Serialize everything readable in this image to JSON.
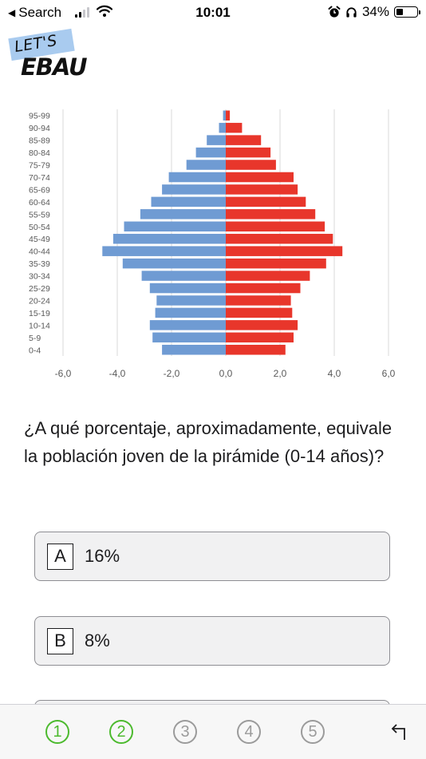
{
  "status_bar": {
    "back_label": "Search",
    "time": "10:01",
    "battery_text": "34%",
    "battery_level": 0.34,
    "signal_bars_active": 2,
    "signal_bars_total": 4
  },
  "logo": {
    "top_text": "LET'S",
    "main_text": "EBAU"
  },
  "chart_data": {
    "type": "bar",
    "orientation": "horizontal-population-pyramid",
    "categories": [
      "95-99",
      "90-94",
      "85-89",
      "80-84",
      "75-79",
      "70-74",
      "65-69",
      "60-64",
      "55-59",
      "50-54",
      "45-49",
      "40-44",
      "35-39",
      "30-34",
      "25-29",
      "20-24",
      "15-19",
      "10-14",
      "5-9",
      "0-4"
    ],
    "series": [
      {
        "color": "#6f9bd3",
        "values": [
          -0.1,
          -0.25,
          -0.7,
          -1.1,
          -1.45,
          -2.1,
          -2.35,
          -2.75,
          -3.15,
          -3.75,
          -4.15,
          -4.55,
          -3.8,
          -3.1,
          -2.8,
          -2.55,
          -2.6,
          -2.8,
          -2.7,
          -2.35
        ]
      },
      {
        "color": "#e8362b",
        "values": [
          0.15,
          0.6,
          1.3,
          1.65,
          1.85,
          2.5,
          2.65,
          2.95,
          3.3,
          3.65,
          3.95,
          4.3,
          3.7,
          3.1,
          2.75,
          2.4,
          2.45,
          2.65,
          2.5,
          2.2
        ]
      }
    ],
    "xlim": [
      -6,
      6
    ],
    "xticks": [
      "-6,0",
      "-4,0",
      "-2,0",
      "0,0",
      "2,0",
      "4,0",
      "6,0"
    ],
    "xtick_values": [
      -6,
      -4,
      -2,
      0,
      2,
      4,
      6
    ],
    "grid": true,
    "title": "",
    "xlabel": "",
    "ylabel": ""
  },
  "question": {
    "text": "¿A qué porcentaje, aproximadamente, equivale la población joven de la pirámide (0-14 años)?"
  },
  "options": [
    {
      "letter": "A",
      "text": "16%"
    },
    {
      "letter": "B",
      "text": "8%"
    }
  ],
  "nav": {
    "steps": [
      {
        "label": "1",
        "done": true
      },
      {
        "label": "2",
        "done": true
      },
      {
        "label": "3",
        "done": false
      },
      {
        "label": "4",
        "done": false
      },
      {
        "label": "5",
        "done": false
      }
    ],
    "colors": {
      "done": "#4cba2e",
      "pending": "#9b9b9b"
    }
  }
}
